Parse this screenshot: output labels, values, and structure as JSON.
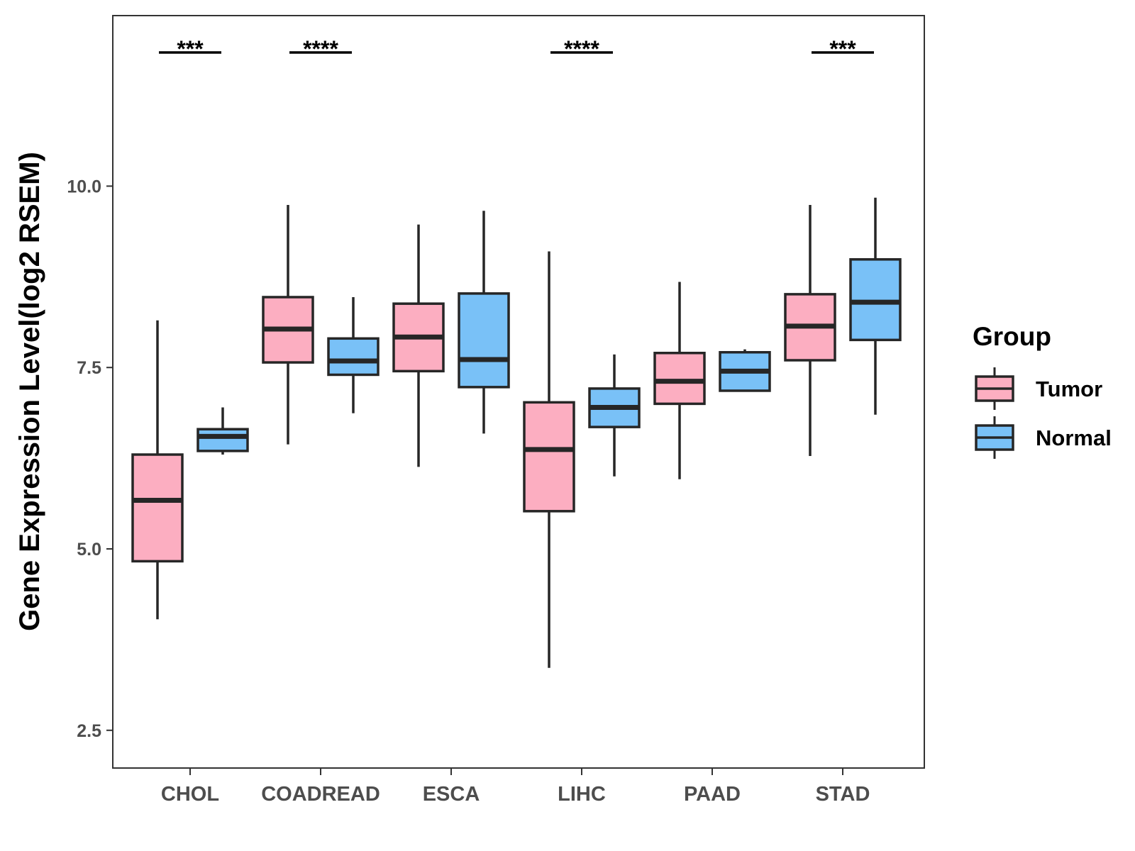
{
  "chart_data": {
    "type": "box",
    "title": "",
    "xlabel": "",
    "ylabel": "Gene Expression Level(log2 RSEM)",
    "ylim": [
      1.98,
      12.35
    ],
    "yticks": [
      2.5,
      5.0,
      7.5,
      10.0
    ],
    "ytick_labels": [
      "2.5",
      "5.0",
      "7.5",
      "10.0"
    ],
    "categories": [
      "CHOL",
      "COADREAD",
      "ESCA",
      "LIHC",
      "PAAD",
      "STAD"
    ],
    "grid": false,
    "legend": {
      "title": "Group",
      "position": "right",
      "entries": [
        "Tumor",
        "Normal"
      ]
    },
    "colors": {
      "Tumor": "#fcaec1",
      "Normal": "#79c1f7",
      "outline": "#262626"
    },
    "series": [
      {
        "name": "Tumor",
        "boxes": [
          {
            "category": "CHOL",
            "whisker_low": 4.03,
            "q1": 4.83,
            "median": 5.67,
            "q3": 6.3,
            "whisker_high": 8.15
          },
          {
            "category": "COADREAD",
            "whisker_low": 6.44,
            "q1": 7.57,
            "median": 8.03,
            "q3": 8.47,
            "whisker_high": 9.74
          },
          {
            "category": "ESCA",
            "whisker_low": 6.13,
            "q1": 7.45,
            "median": 7.92,
            "q3": 8.38,
            "whisker_high": 9.47
          },
          {
            "category": "LIHC",
            "whisker_low": 3.36,
            "q1": 5.52,
            "median": 6.37,
            "q3": 7.02,
            "whisker_high": 9.1
          },
          {
            "category": "PAAD",
            "whisker_low": 5.96,
            "q1": 7.0,
            "median": 7.31,
            "q3": 7.7,
            "whisker_high": 8.68
          },
          {
            "category": "STAD",
            "whisker_low": 6.28,
            "q1": 7.6,
            "median": 8.07,
            "q3": 8.51,
            "whisker_high": 9.74
          }
        ]
      },
      {
        "name": "Normal",
        "boxes": [
          {
            "category": "CHOL",
            "whisker_low": 6.3,
            "q1": 6.35,
            "median": 6.55,
            "q3": 6.65,
            "whisker_high": 6.95
          },
          {
            "category": "COADREAD",
            "whisker_low": 6.87,
            "q1": 7.4,
            "median": 7.59,
            "q3": 7.9,
            "whisker_high": 8.47
          },
          {
            "category": "ESCA",
            "whisker_low": 6.59,
            "q1": 7.23,
            "median": 7.61,
            "q3": 8.52,
            "whisker_high": 9.66
          },
          {
            "category": "LIHC",
            "whisker_low": 6.0,
            "q1": 6.68,
            "median": 6.95,
            "q3": 7.21,
            "whisker_high": 7.68
          },
          {
            "category": "PAAD",
            "whisker_low": 7.18,
            "q1": 7.18,
            "median": 7.45,
            "q3": 7.71,
            "whisker_high": 7.75
          },
          {
            "category": "STAD",
            "whisker_low": 6.85,
            "q1": 7.88,
            "median": 8.4,
            "q3": 8.99,
            "whisker_high": 9.84
          }
        ]
      }
    ],
    "annotations": [
      {
        "category": "CHOL",
        "label": "***"
      },
      {
        "category": "COADREAD",
        "label": "****"
      },
      {
        "category": "LIHC",
        "label": "****"
      },
      {
        "category": "STAD",
        "label": "***"
      }
    ]
  }
}
